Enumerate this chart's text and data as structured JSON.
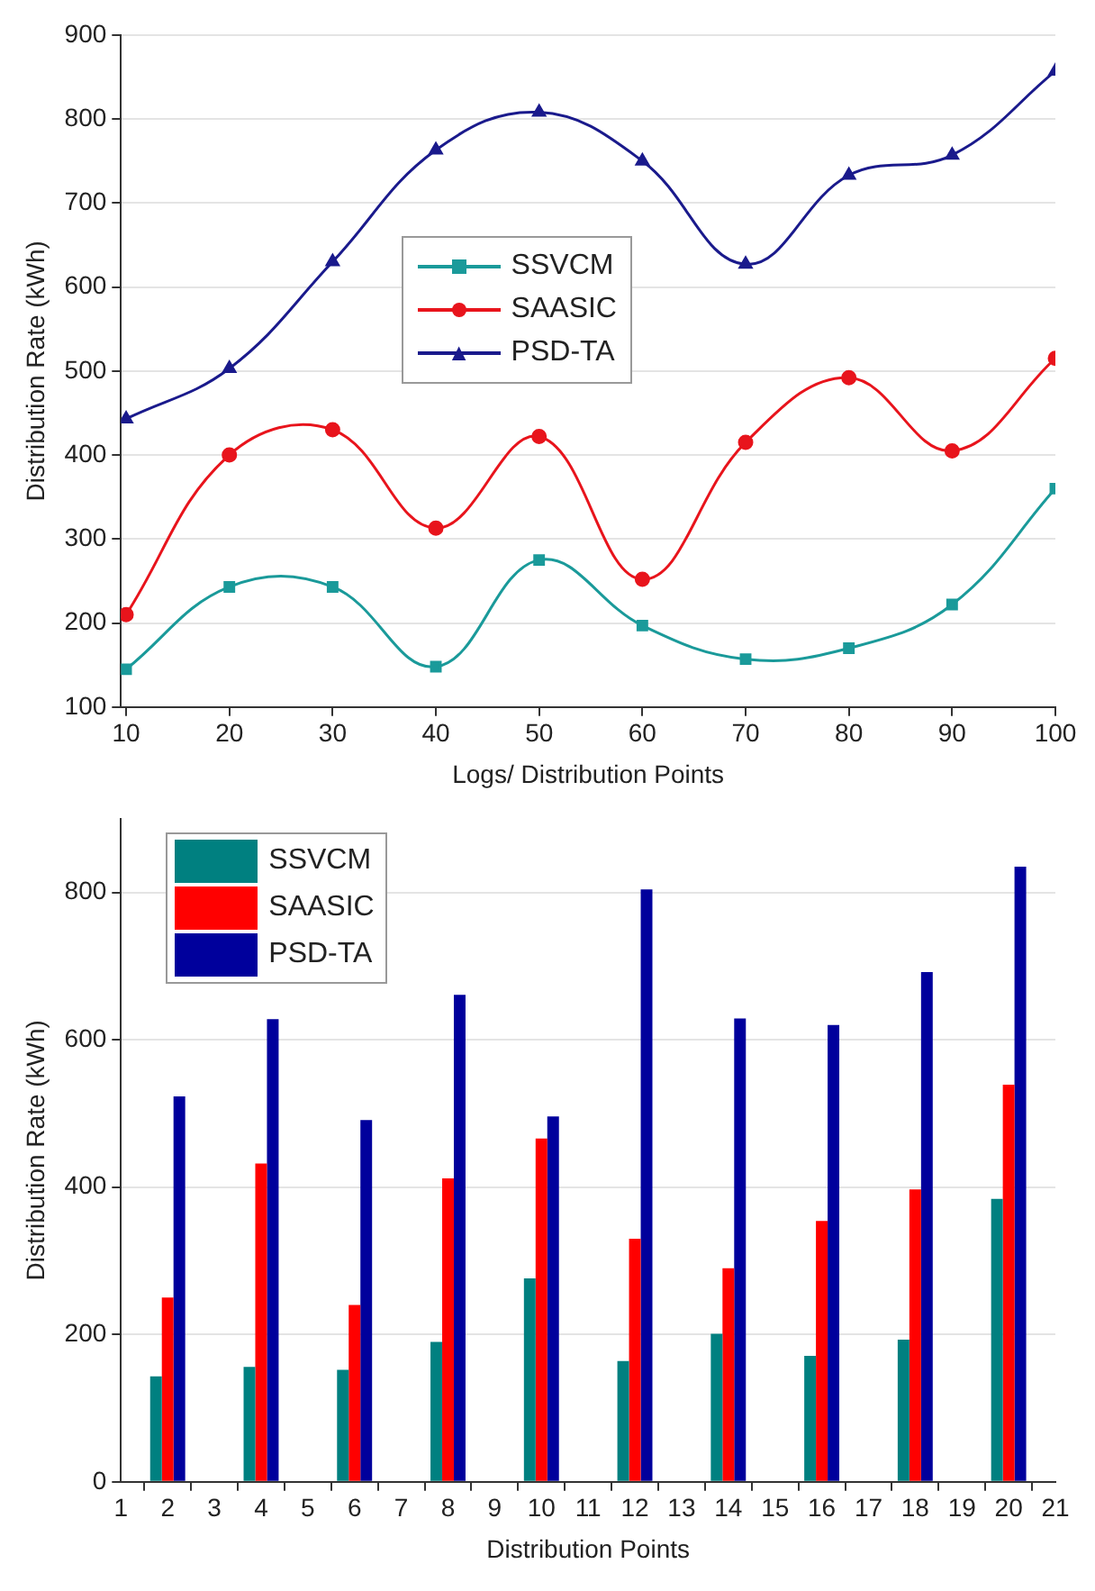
{
  "chart_data": [
    {
      "type": "line",
      "xlabel": "Logs/ Distribution Points",
      "ylabel": "Distribution Rate (kWh)",
      "x": [
        10,
        20,
        30,
        40,
        50,
        60,
        70,
        80,
        90,
        100
      ],
      "xlim": [
        9.5,
        100
      ],
      "xticks": [
        10,
        20,
        30,
        40,
        50,
        60,
        70,
        80,
        90,
        100
      ],
      "ylim": [
        100,
        900
      ],
      "yticks": [
        100,
        200,
        300,
        400,
        500,
        600,
        700,
        800,
        900
      ],
      "grid": "y",
      "legend": "center",
      "series": [
        {
          "name": "SSVCM",
          "color": "#1a9a9a",
          "marker": "square",
          "values": [
            145,
            243,
            243,
            148,
            275,
            197,
            157,
            170,
            222,
            360
          ]
        },
        {
          "name": "SAASIC",
          "color": "#e8141c",
          "marker": "circle",
          "values": [
            210,
            400,
            430,
            313,
            422,
            252,
            415,
            492,
            405,
            515
          ]
        },
        {
          "name": "PSD-TA",
          "color": "#1a1a8c",
          "marker": "triangle",
          "values": [
            443,
            503,
            630,
            763,
            808,
            750,
            627,
            733,
            757,
            857
          ]
        }
      ]
    },
    {
      "type": "bar",
      "xlabel": "Distribution Points",
      "ylabel": "Distribution Rate (kWh)",
      "x": [
        2,
        4,
        6,
        8,
        10,
        12,
        14,
        16,
        18,
        20
      ],
      "xlim": [
        1,
        21
      ],
      "xticks": [
        1,
        2,
        3,
        4,
        5,
        6,
        7,
        8,
        9,
        10,
        11,
        12,
        13,
        14,
        15,
        16,
        17,
        18,
        19,
        20,
        21
      ],
      "ylim": [
        0,
        900
      ],
      "yticks": [
        0,
        200,
        400,
        600,
        800
      ],
      "grid": "y",
      "legend": "top left",
      "series": [
        {
          "name": "SSVCM",
          "color": "#008080",
          "values": [
            143,
            156,
            152,
            190,
            276,
            164,
            201,
            171,
            193,
            384
          ]
        },
        {
          "name": "SAASIC",
          "color": "#ff0000",
          "values": [
            250,
            432,
            240,
            412,
            466,
            330,
            290,
            354,
            397,
            539
          ]
        },
        {
          "name": "PSD-TA",
          "color": "#00009c",
          "values": [
            523,
            628,
            491,
            661,
            496,
            804,
            629,
            620,
            692,
            835
          ]
        }
      ]
    }
  ]
}
